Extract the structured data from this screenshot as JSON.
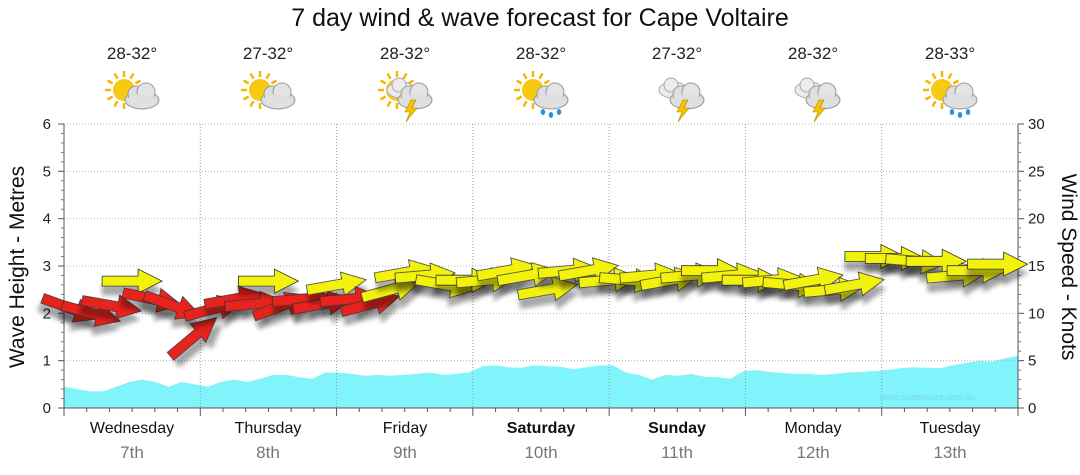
{
  "chart_data": {
    "type": "area",
    "title": "7 day wind & wave forecast for Cape Voltaire",
    "ylabel_left": "Wave Height - Metres",
    "ylabel_right": "Wind Speed - Knots",
    "ylim_left": [
      0,
      6
    ],
    "ylim_right": [
      0,
      30
    ],
    "yticks_left": [
      "0",
      "1",
      "2",
      "3",
      "4",
      "5",
      "6"
    ],
    "yticks_right": [
      "0",
      "5",
      "10",
      "15",
      "20",
      "25",
      "30"
    ],
    "watermark": "www.seabreeze.com.au",
    "days": [
      {
        "name": "Wednesday",
        "date": "7th",
        "bold": false,
        "temp": "28-32°",
        "icon": "sun-cloud-icon"
      },
      {
        "name": "Thursday",
        "date": "8th",
        "bold": false,
        "temp": "27-32°",
        "icon": "sun-cloud-icon"
      },
      {
        "name": "Friday",
        "date": "9th",
        "bold": false,
        "temp": "28-32°",
        "icon": "storm-sun-icon"
      },
      {
        "name": "Saturday",
        "date": "10th",
        "bold": true,
        "temp": "28-32°",
        "icon": "sun-rain-icon"
      },
      {
        "name": "Sunday",
        "date": "11th",
        "bold": true,
        "temp": "27-32°",
        "icon": "storm-icon"
      },
      {
        "name": "Monday",
        "date": "12th",
        "bold": false,
        "temp": "28-32°",
        "icon": "storm-icon"
      },
      {
        "name": "Tuesday",
        "date": "13th",
        "bold": false,
        "temp": "28-33°",
        "icon": "sun-rain-icon"
      }
    ],
    "wave_height_m": [
      0.45,
      0.4,
      0.35,
      0.35,
      0.45,
      0.55,
      0.6,
      0.55,
      0.45,
      0.55,
      0.5,
      0.45,
      0.55,
      0.6,
      0.55,
      0.62,
      0.7,
      0.7,
      0.65,
      0.62,
      0.75,
      0.75,
      0.72,
      0.68,
      0.7,
      0.68,
      0.7,
      0.72,
      0.75,
      0.7,
      0.72,
      0.75,
      0.88,
      0.9,
      0.86,
      0.85,
      0.9,
      0.88,
      0.87,
      0.82,
      0.86,
      0.9,
      0.9,
      0.75,
      0.7,
      0.6,
      0.7,
      0.68,
      0.72,
      0.66,
      0.65,
      0.62,
      0.78,
      0.8,
      0.76,
      0.74,
      0.72,
      0.72,
      0.7,
      0.72,
      0.75,
      0.76,
      0.78,
      0.8,
      0.84,
      0.86,
      0.85,
      0.84,
      0.9,
      0.95,
      1.0,
      0.98,
      1.05,
      1.1
    ],
    "wind": [
      {
        "x": 0.05,
        "knots": 10.5,
        "dir": 20,
        "color": "#e8201c"
      },
      {
        "x": 0.2,
        "knots": 10,
        "dir": 15,
        "color": "#e8201c"
      },
      {
        "x": 0.35,
        "knots": 10.8,
        "dir": 10,
        "color": "#e8201c"
      },
      {
        "x": 0.5,
        "knots": 13.4,
        "dir": 0,
        "color": "#f2f20f"
      },
      {
        "x": 0.65,
        "knots": 11.5,
        "dir": 12,
        "color": "#e8201c"
      },
      {
        "x": 0.8,
        "knots": 10.8,
        "dir": 20,
        "color": "#e8201c"
      },
      {
        "x": 0.95,
        "knots": 7.5,
        "dir": -40,
        "color": "#e8201c"
      },
      {
        "x": 1.1,
        "knots": 10.5,
        "dir": -15,
        "color": "#e8201c"
      },
      {
        "x": 1.25,
        "knots": 11.5,
        "dir": -10,
        "color": "#e8201c"
      },
      {
        "x": 1.4,
        "knots": 11,
        "dir": -5,
        "color": "#e8201c"
      },
      {
        "x": 1.5,
        "knots": 13.4,
        "dir": 0,
        "color": "#f2f20f"
      },
      {
        "x": 1.6,
        "knots": 10.8,
        "dir": -20,
        "color": "#e8201c"
      },
      {
        "x": 1.75,
        "knots": 11.5,
        "dir": -5,
        "color": "#e8201c"
      },
      {
        "x": 1.9,
        "knots": 11,
        "dir": -10,
        "color": "#e8201c"
      },
      {
        "x": 2.0,
        "knots": 13,
        "dir": -10,
        "color": "#f2f20f"
      },
      {
        "x": 2.1,
        "knots": 11.5,
        "dir": -5,
        "color": "#e8201c"
      },
      {
        "x": 2.25,
        "knots": 11,
        "dir": -15,
        "color": "#e8201c"
      },
      {
        "x": 2.4,
        "knots": 12.5,
        "dir": -15,
        "color": "#f2f20f"
      },
      {
        "x": 2.5,
        "knots": 14.3,
        "dir": -10,
        "color": "#f2f20f"
      },
      {
        "x": 2.65,
        "knots": 14,
        "dir": -5,
        "color": "#f2f20f"
      },
      {
        "x": 2.8,
        "knots": 13,
        "dir": 10,
        "color": "#f2f20f"
      },
      {
        "x": 2.95,
        "knots": 13.5,
        "dir": 0,
        "color": "#f2f20f"
      },
      {
        "x": 3.1,
        "knots": 13.5,
        "dir": -5,
        "color": "#f2f20f"
      },
      {
        "x": 3.25,
        "knots": 14.5,
        "dir": -10,
        "color": "#f2f20f"
      },
      {
        "x": 3.4,
        "knots": 14,
        "dir": -10,
        "color": "#f2f20f"
      },
      {
        "x": 3.55,
        "knots": 12.5,
        "dir": -10,
        "color": "#f2f20f"
      },
      {
        "x": 3.7,
        "knots": 14.5,
        "dir": -5,
        "color": "#f2f20f"
      },
      {
        "x": 3.85,
        "knots": 14.5,
        "dir": -10,
        "color": "#f2f20f"
      },
      {
        "x": 4.0,
        "knots": 13.5,
        "dir": -5,
        "color": "#f2f20f"
      },
      {
        "x": 4.15,
        "knots": 13.5,
        "dir": 5,
        "color": "#f2f20f"
      },
      {
        "x": 4.3,
        "knots": 14,
        "dir": -5,
        "color": "#f2f20f"
      },
      {
        "x": 4.45,
        "knots": 13.5,
        "dir": -10,
        "color": "#f2f20f"
      },
      {
        "x": 4.6,
        "knots": 14,
        "dir": -5,
        "color": "#f2f20f"
      },
      {
        "x": 4.75,
        "knots": 14.5,
        "dir": 0,
        "color": "#f2f20f"
      },
      {
        "x": 4.9,
        "knots": 14,
        "dir": -5,
        "color": "#f2f20f"
      },
      {
        "x": 5.05,
        "knots": 13.5,
        "dir": 0,
        "color": "#f2f20f"
      },
      {
        "x": 5.2,
        "knots": 13.5,
        "dir": -5,
        "color": "#f2f20f"
      },
      {
        "x": 5.35,
        "knots": 13,
        "dir": 5,
        "color": "#f2f20f"
      },
      {
        "x": 5.5,
        "knots": 13.5,
        "dir": -10,
        "color": "#f2f20f"
      },
      {
        "x": 5.65,
        "knots": 12.5,
        "dir": -5,
        "color": "#f2f20f"
      },
      {
        "x": 5.8,
        "knots": 13,
        "dir": -10,
        "color": "#f2f20f"
      },
      {
        "x": 5.95,
        "knots": 16,
        "dir": 0,
        "color": "#f2f20f"
      },
      {
        "x": 6.1,
        "knots": 15.8,
        "dir": 0,
        "color": "#f2f20f"
      },
      {
        "x": 6.25,
        "knots": 15.5,
        "dir": 5,
        "color": "#f2f20f"
      },
      {
        "x": 6.4,
        "knots": 15.5,
        "dir": 0,
        "color": "#f2f20f"
      },
      {
        "x": 6.55,
        "knots": 14,
        "dir": -5,
        "color": "#f2f20f"
      },
      {
        "x": 6.7,
        "knots": 14.5,
        "dir": 0,
        "color": "#f2f20f"
      },
      {
        "x": 6.85,
        "knots": 15.2,
        "dir": 0,
        "color": "#f2f20f"
      }
    ]
  }
}
